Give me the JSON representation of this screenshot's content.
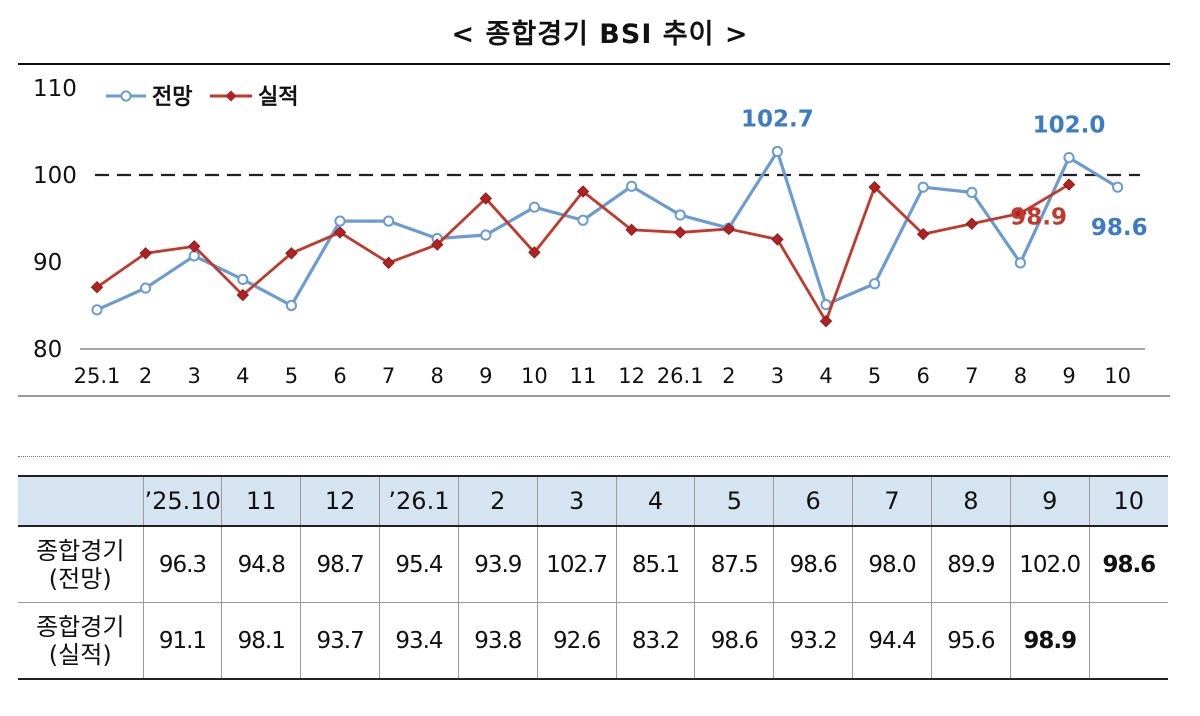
{
  "title": "< 종합경기 BSI 추이 >",
  "chart_data": {
    "type": "line",
    "categories": [
      "25.1",
      "2",
      "3",
      "4",
      "5",
      "6",
      "7",
      "8",
      "9",
      "10",
      "11",
      "12",
      "26.1",
      "2",
      "3",
      "4",
      "5",
      "6",
      "7",
      "8",
      "9",
      "10"
    ],
    "ylim": [
      80,
      110
    ],
    "yticks": [
      80,
      90,
      100,
      110
    ],
    "reference_line": 100,
    "legend_position": "top-left",
    "series": [
      {
        "name": "전망",
        "color": "#6c9bd2",
        "values": [
          84.5,
          87.0,
          90.7,
          88.0,
          85.0,
          94.7,
          94.7,
          92.7,
          93.1,
          96.3,
          94.8,
          98.7,
          95.4,
          93.9,
          102.7,
          85.1,
          87.5,
          98.6,
          98.0,
          89.9,
          102.0,
          98.6
        ]
      },
      {
        "name": "실적",
        "color": "#c0392b",
        "values": [
          87.1,
          91.0,
          91.8,
          86.2,
          91.0,
          93.4,
          89.9,
          92.0,
          97.3,
          91.1,
          98.1,
          93.7,
          93.4,
          93.8,
          92.6,
          83.2,
          98.6,
          93.2,
          94.4,
          95.6,
          98.9,
          null
        ]
      }
    ],
    "annotations": [
      {
        "text": "102.7",
        "series": 0,
        "index": 14,
        "color": "#3d7cc4"
      },
      {
        "text": "102.0",
        "series": 0,
        "index": 20,
        "color": "#3d7cc4"
      },
      {
        "text": "98.9",
        "series": 1,
        "index": 20,
        "color": "#c0392b"
      },
      {
        "text": "98.6",
        "series": 0,
        "index": 21,
        "color": "#3d7cc4"
      }
    ]
  },
  "table": {
    "headers": [
      "",
      "’25.10",
      "11",
      "12",
      "’26.1",
      "2",
      "3",
      "4",
      "5",
      "6",
      "7",
      "8",
      "9",
      "10"
    ],
    "rows": [
      {
        "label_line1": "종합경기",
        "label_line2": "(전망)",
        "values": [
          "96.3",
          "94.8",
          "98.7",
          "95.4",
          "93.9",
          "102.7",
          "85.1",
          "87.5",
          "98.6",
          "98.0",
          "89.9",
          "102.0",
          "98.6"
        ]
      },
      {
        "label_line1": "종합경기",
        "label_line2": "(실적)",
        "values": [
          "91.1",
          "98.1",
          "93.7",
          "93.4",
          "93.8",
          "92.6",
          "83.2",
          "98.6",
          "93.2",
          "94.4",
          "95.6",
          "98.9",
          ""
        ]
      }
    ]
  }
}
